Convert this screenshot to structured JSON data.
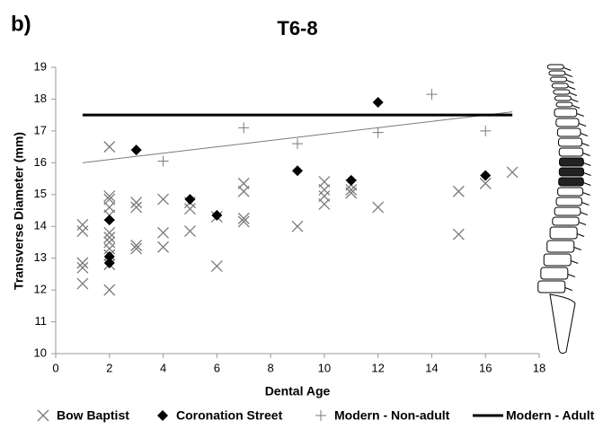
{
  "chart_data": {
    "type": "scatter",
    "panel_label": "b)",
    "title": "T6-8",
    "x_label": "Dental Age",
    "y_label": "Transverse Diameter (mm)",
    "xlim": [
      0,
      18
    ],
    "xticks": [
      0,
      2,
      4,
      6,
      8,
      10,
      12,
      14,
      16,
      18
    ],
    "ylim": [
      10,
      19
    ],
    "yticks": [
      10,
      11,
      12,
      13,
      14,
      15,
      16,
      17,
      18,
      19
    ],
    "grid": false,
    "legend": "bottom",
    "series": [
      {
        "name": "Bow Baptist",
        "color": "#7a7a7a",
        "marker": "x",
        "x": [
          1,
          1,
          1,
          1,
          1,
          2,
          2,
          2,
          2,
          2,
          2,
          2,
          2,
          2,
          2,
          2,
          2,
          3,
          3,
          3,
          3,
          4,
          4,
          4,
          5,
          5,
          5,
          6,
          6,
          7,
          7,
          7,
          7,
          9,
          10,
          10,
          10,
          10,
          11,
          11,
          11,
          12,
          15,
          15,
          16,
          17
        ],
        "values": [
          14.05,
          13.85,
          12.85,
          12.7,
          12.2,
          16.5,
          14.95,
          14.85,
          14.6,
          14.35,
          13.8,
          13.65,
          13.5,
          13.3,
          13.1,
          12.8,
          12.0,
          14.75,
          14.6,
          13.4,
          13.3,
          14.85,
          13.8,
          13.35,
          14.75,
          14.55,
          13.85,
          14.3,
          12.75,
          15.35,
          15.1,
          14.25,
          14.15,
          14.0,
          15.4,
          15.15,
          14.95,
          14.7,
          15.3,
          15.15,
          15.05,
          14.6,
          15.1,
          13.75,
          15.35,
          15.7
        ]
      },
      {
        "name": "Coronation Street",
        "color": "#000000",
        "marker": "diamond",
        "x": [
          2,
          2,
          2,
          3,
          5,
          6,
          9,
          11,
          12,
          16
        ],
        "values": [
          14.2,
          13.05,
          12.85,
          16.4,
          14.85,
          14.35,
          15.75,
          15.45,
          17.9,
          15.6
        ]
      },
      {
        "name": "Modern - Non-adult",
        "color": "#7a7a7a",
        "marker": "plus",
        "x": [
          4,
          7,
          9,
          12,
          14,
          16
        ],
        "values": [
          16.05,
          17.1,
          16.6,
          16.95,
          18.15,
          17.0
        ],
        "trend": {
          "x": [
            1,
            17
          ],
          "values": [
            16.0,
            17.6
          ]
        }
      },
      {
        "name": "Modern - Adult",
        "color": "#000000",
        "marker": "line",
        "x": [
          1,
          17
        ],
        "values": [
          17.5,
          17.5
        ]
      }
    ]
  }
}
